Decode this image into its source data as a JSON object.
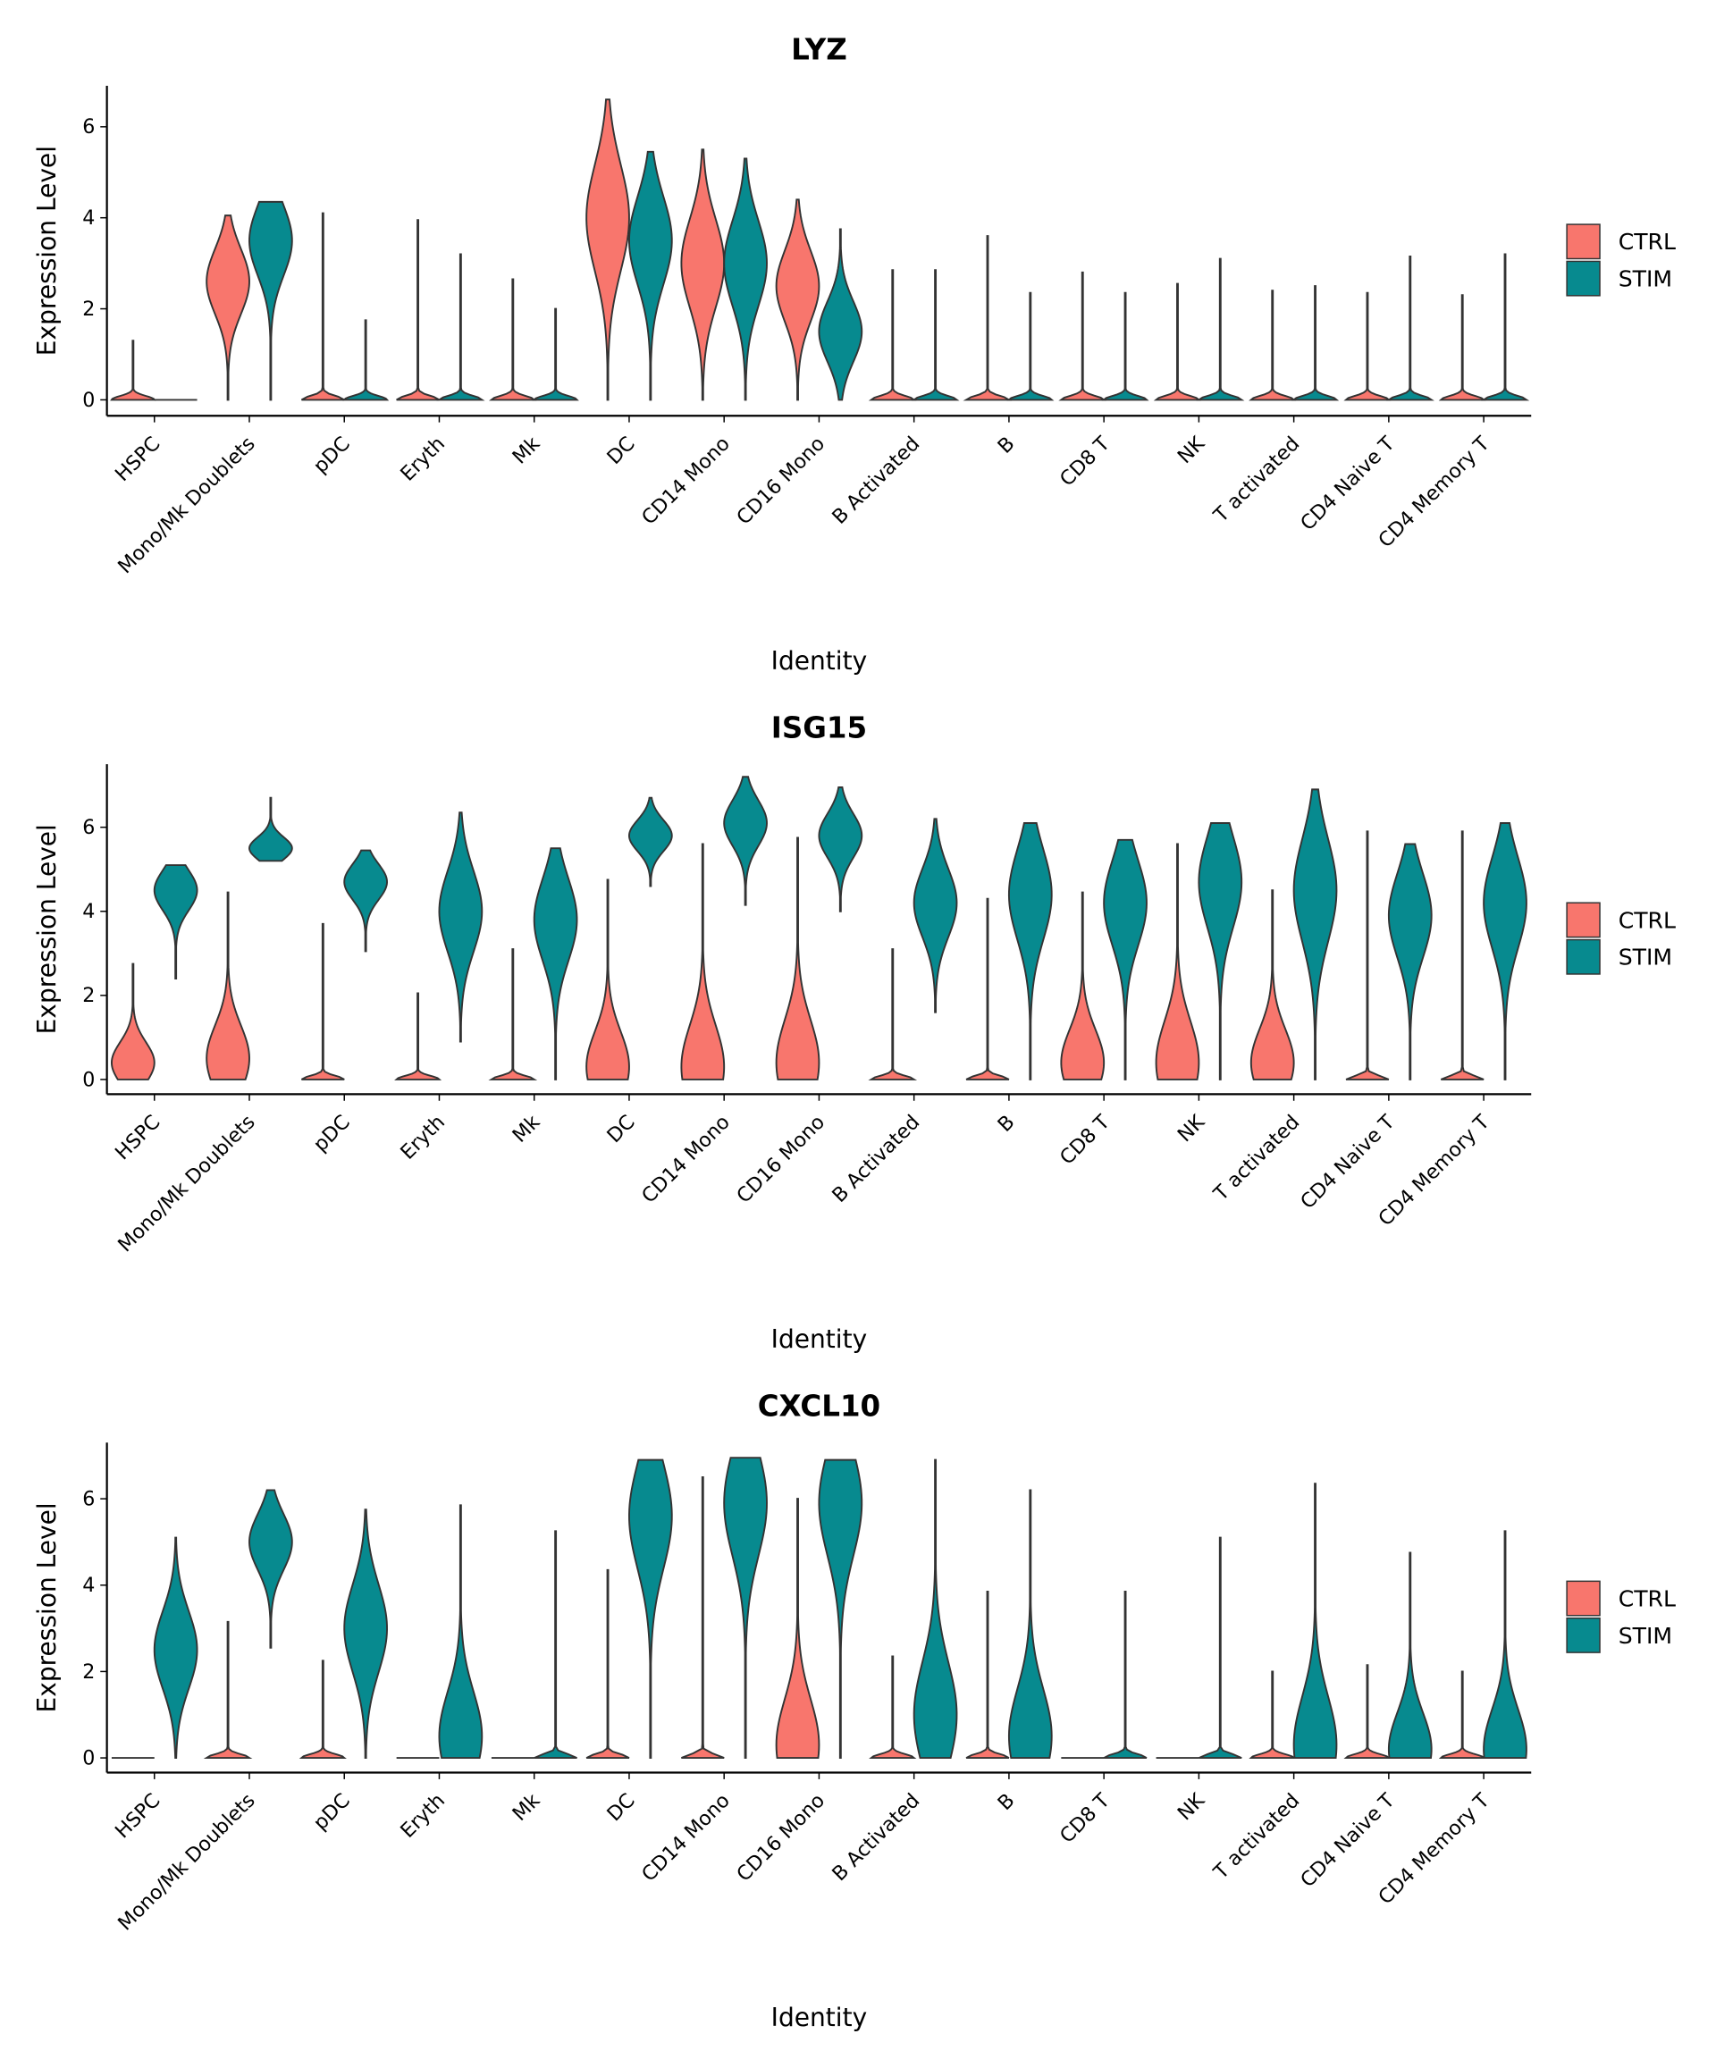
{
  "chart_data": [
    {
      "type": "violin",
      "title": "LYZ",
      "x_label": "Identity",
      "y_label": "Expression Level",
      "categories": [
        "HSPC",
        "Mono/Mk Doublets",
        "pDC",
        "Eryth",
        "Mk",
        "DC",
        "CD14 Mono",
        "CD16 Mono",
        "B Activated",
        "B",
        "CD8 T",
        "NK",
        "T activated",
        "CD4 Naive T",
        "CD4 Memory T"
      ],
      "ylim": [
        -0.35,
        6.9
      ],
      "yticks": [
        0,
        2,
        4,
        6
      ],
      "legend": "right",
      "series": [
        {
          "name": "CTRL",
          "color": "#F8766D",
          "values": [
            1.3,
            4.05,
            4.1,
            3.95,
            2.65,
            6.6,
            5.5,
            4.4,
            2.85,
            3.6,
            2.8,
            2.55,
            2.4,
            2.35,
            2.3
          ],
          "mins": [
            0,
            0,
            0,
            0,
            0,
            0,
            0,
            0,
            0,
            0,
            0,
            0,
            0,
            0,
            0
          ],
          "modes": [
            0,
            2.6,
            0,
            0,
            0,
            4,
            3,
            2.5,
            0,
            0,
            0,
            0,
            0,
            0,
            0
          ]
        },
        {
          "name": "STIM",
          "color": "#078A8F",
          "values": [
            0,
            4.35,
            1.75,
            3.2,
            2.0,
            5.45,
            5.3,
            3.75,
            2.85,
            2.35,
            2.35,
            3.1,
            2.5,
            3.15,
            3.2
          ],
          "mins": [
            0,
            0,
            0,
            0,
            0,
            0,
            0,
            0,
            0,
            0,
            0,
            0,
            0,
            0,
            0
          ],
          "modes": [
            0,
            3.5,
            0,
            0,
            0,
            3.5,
            3,
            1.5,
            0,
            0,
            0,
            0,
            0,
            0,
            0
          ]
        }
      ]
    },
    {
      "type": "violin",
      "title": "ISG15",
      "x_label": "Identity",
      "y_label": "Expression Level",
      "categories": [
        "HSPC",
        "Mono/Mk Doublets",
        "pDC",
        "Eryth",
        "Mk",
        "DC",
        "CD14 Mono",
        "CD16 Mono",
        "B Activated",
        "B",
        "CD8 T",
        "NK",
        "T activated",
        "CD4 Naive T",
        "CD4 Memory T"
      ],
      "ylim": [
        -0.35,
        7.5
      ],
      "yticks": [
        0,
        2,
        4,
        6
      ],
      "legend": "right",
      "series": [
        {
          "name": "CTRL",
          "color": "#F8766D",
          "values": [
            2.75,
            4.45,
            3.7,
            2.05,
            3.1,
            4.75,
            5.6,
            5.75,
            3.1,
            4.3,
            4.45,
            5.6,
            4.5,
            5.9,
            5.9
          ],
          "mins": [
            0,
            0,
            0,
            0,
            0,
            0,
            0,
            0,
            0,
            0,
            0,
            0,
            0,
            0,
            0
          ],
          "modes": [
            0.4,
            0.5,
            0,
            0,
            0,
            0.3,
            0.3,
            0.4,
            0,
            0,
            0.4,
            0.4,
            0.4,
            0,
            0
          ]
        },
        {
          "name": "STIM",
          "color": "#078A8F",
          "values": [
            5.1,
            6.7,
            5.45,
            6.35,
            5.5,
            6.7,
            7.2,
            6.95,
            6.2,
            6.1,
            5.7,
            6.1,
            6.9,
            5.6,
            6.1
          ],
          "mins": [
            2.4,
            5.2,
            3.05,
            0.9,
            0,
            4.6,
            4.15,
            4.0,
            1.6,
            0,
            0,
            0,
            0,
            0,
            0
          ],
          "modes": [
            4.5,
            5.5,
            4.7,
            4,
            3.8,
            5.8,
            6.1,
            5.8,
            4.2,
            4.4,
            4.2,
            4.7,
            4.5,
            3.9,
            4.2
          ]
        }
      ]
    },
    {
      "type": "violin",
      "title": "CXCL10",
      "x_label": "Identity",
      "y_label": "Expression Level",
      "categories": [
        "HSPC",
        "Mono/Mk Doublets",
        "pDC",
        "Eryth",
        "Mk",
        "DC",
        "CD14 Mono",
        "CD16 Mono",
        "B Activated",
        "B",
        "CD8 T",
        "NK",
        "T activated",
        "CD4 Naive T",
        "CD4 Memory T"
      ],
      "ylim": [
        -0.34,
        7.3
      ],
      "yticks": [
        0,
        2,
        4,
        6
      ],
      "legend": "right",
      "series": [
        {
          "name": "CTRL",
          "color": "#F8766D",
          "values": [
            0,
            3.15,
            2.25,
            0,
            0,
            4.35,
            6.5,
            6.0,
            2.35,
            3.85,
            0,
            0,
            2.0,
            2.15,
            2.0
          ],
          "mins": [
            0,
            0,
            0,
            0,
            0,
            0,
            0,
            0,
            0,
            0,
            0,
            0,
            0,
            0,
            0
          ],
          "modes": [
            0,
            0,
            0,
            0,
            0,
            0,
            0,
            0.3,
            0,
            0,
            0,
            0,
            0,
            0,
            0
          ]
        },
        {
          "name": "STIM",
          "color": "#078A8F",
          "values": [
            5.1,
            6.2,
            5.75,
            5.85,
            5.25,
            6.9,
            6.95,
            6.9,
            6.9,
            6.2,
            3.85,
            5.1,
            6.35,
            4.75,
            5.25
          ],
          "mins": [
            0,
            2.55,
            0,
            0,
            0,
            0,
            0,
            0,
            0,
            0,
            0,
            0,
            0,
            0,
            0
          ],
          "modes": [
            2.5,
            5,
            3,
            0.5,
            0,
            5.6,
            5.9,
            5.9,
            1,
            0.5,
            0,
            0,
            0.3,
            0.2,
            0.2
          ]
        }
      ]
    }
  ]
}
